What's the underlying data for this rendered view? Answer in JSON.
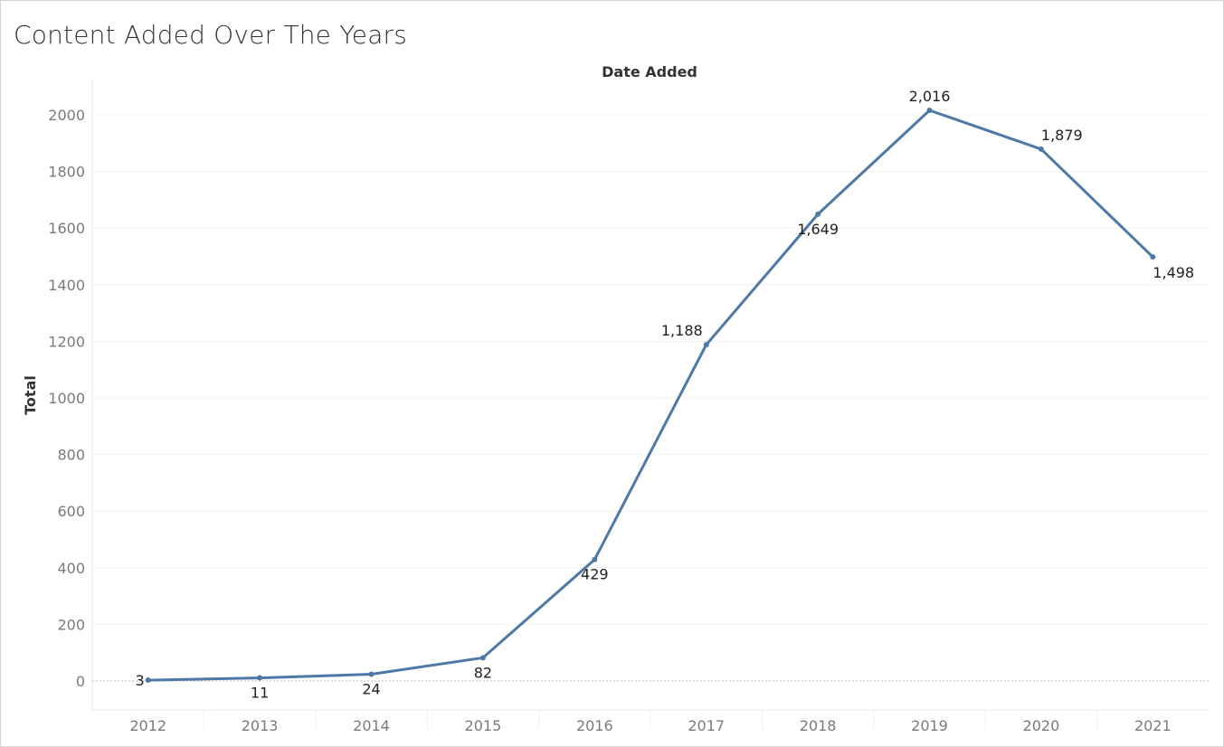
{
  "title": "Content Added Over The Years",
  "chart_data": {
    "type": "line",
    "title": "Content Added Over The Years",
    "x_header": "Date Added",
    "ylabel": "Total",
    "categories": [
      "2012",
      "2013",
      "2014",
      "2015",
      "2016",
      "2017",
      "2018",
      "2019",
      "2020",
      "2021"
    ],
    "values": [
      3,
      11,
      24,
      82,
      429,
      1188,
      1649,
      2016,
      1879,
      1498
    ],
    "data_labels": [
      "3",
      "11",
      "24",
      "82",
      "429",
      "1,188",
      "1,649",
      "2,016",
      "1,879",
      "1,498"
    ],
    "y_ticks": [
      "0",
      "200",
      "400",
      "600",
      "800",
      "1000",
      "1200",
      "1400",
      "1600",
      "1800",
      "2000"
    ],
    "ylim": [
      -200,
      2100
    ],
    "grid": true,
    "line_color": "#4e79a7"
  }
}
